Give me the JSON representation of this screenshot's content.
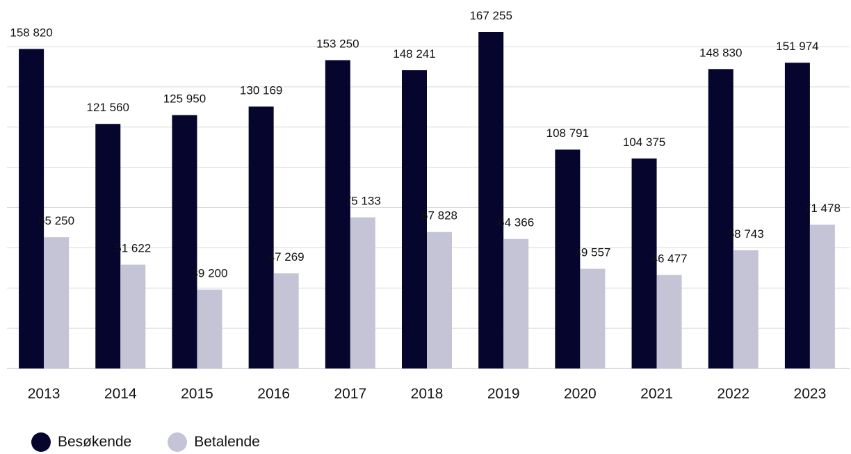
{
  "chart_data": {
    "type": "bar",
    "categories": [
      "2013",
      "2014",
      "2015",
      "2016",
      "2017",
      "2018",
      "2019",
      "2020",
      "2021",
      "2022",
      "2023"
    ],
    "series": [
      {
        "name": "Besøkende",
        "color": "#05052e",
        "values": [
          158820,
          121560,
          125950,
          130169,
          153250,
          148241,
          167255,
          108791,
          104375,
          148830,
          151974
        ],
        "labels": [
          "158 820",
          "121 560",
          "125 950",
          "130 169",
          "153 250",
          "148 241",
          "167 255",
          "108 791",
          "104 375",
          "148 830",
          "151 974"
        ]
      },
      {
        "name": "Betalende",
        "color": "#c4c4d6",
        "values": [
          65250,
          51622,
          39200,
          47269,
          75133,
          67828,
          64366,
          49557,
          46477,
          58743,
          71478
        ],
        "labels": [
          "65 250",
          "51 622",
          "39 200",
          "47 269",
          "75 133",
          "67 828",
          "64 366",
          "49 557",
          "46 477",
          "58 743",
          "71 478"
        ]
      }
    ],
    "ylim": [
      0,
      160000
    ],
    "gridlines": true,
    "legend_position": "bottom-left"
  }
}
